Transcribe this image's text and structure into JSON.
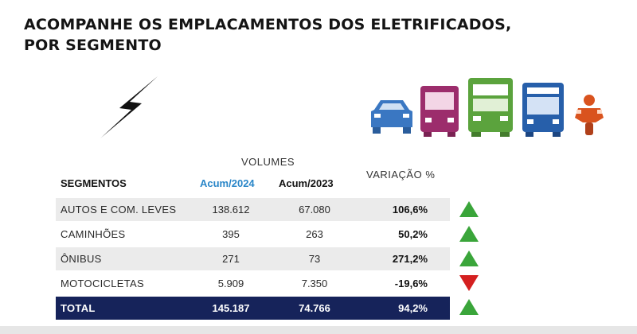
{
  "title_line1": "ACOMPANHE OS EMPLACAMENTOS DOS ELETRIFICADOS,",
  "title_line2": "POR SEGMENTO",
  "icons": [
    "lightning-bolt-icon",
    "car-icon",
    "van-icon",
    "truck-icon",
    "bus-icon",
    "motorcycle-icon"
  ],
  "table": {
    "volumes_label": "VOLUMES",
    "headers": {
      "segment": "SEGMENTOS",
      "acum2024": "Acum/2024",
      "acum2023": "Acum/2023",
      "variation": "VARIAÇÃO %"
    },
    "rows": [
      {
        "segment": "AUTOS E COM. LEVES",
        "acum2024": "138.612",
        "acum2023": "67.080",
        "variation": "106,6%",
        "trend": "up"
      },
      {
        "segment": "CAMINHÕES",
        "acum2024": "395",
        "acum2023": "263",
        "variation": "50,2%",
        "trend": "up"
      },
      {
        "segment": "ÔNIBUS",
        "acum2024": "271",
        "acum2023": "73",
        "variation": "271,2%",
        "trend": "up"
      },
      {
        "segment": "MOTOCICLETAS",
        "acum2024": "5.909",
        "acum2023": "7.350",
        "variation": "-19,6%",
        "trend": "down"
      }
    ],
    "total": {
      "segment": "TOTAL",
      "acum2024": "145.187",
      "acum2023": "74.766",
      "variation": "94,2%",
      "trend": "up"
    }
  },
  "colors": {
    "acum2024_header": "#2a86c8",
    "total_row_bg": "#16235a",
    "row_shade": "#ebebeb",
    "arrow_up": "#3aa53a",
    "arrow_down": "#d42020",
    "car": "#3a77c2",
    "van": "#9c2d6c",
    "truck": "#5ba33d",
    "bus": "#275faa",
    "motorcycle": "#d9531e"
  }
}
